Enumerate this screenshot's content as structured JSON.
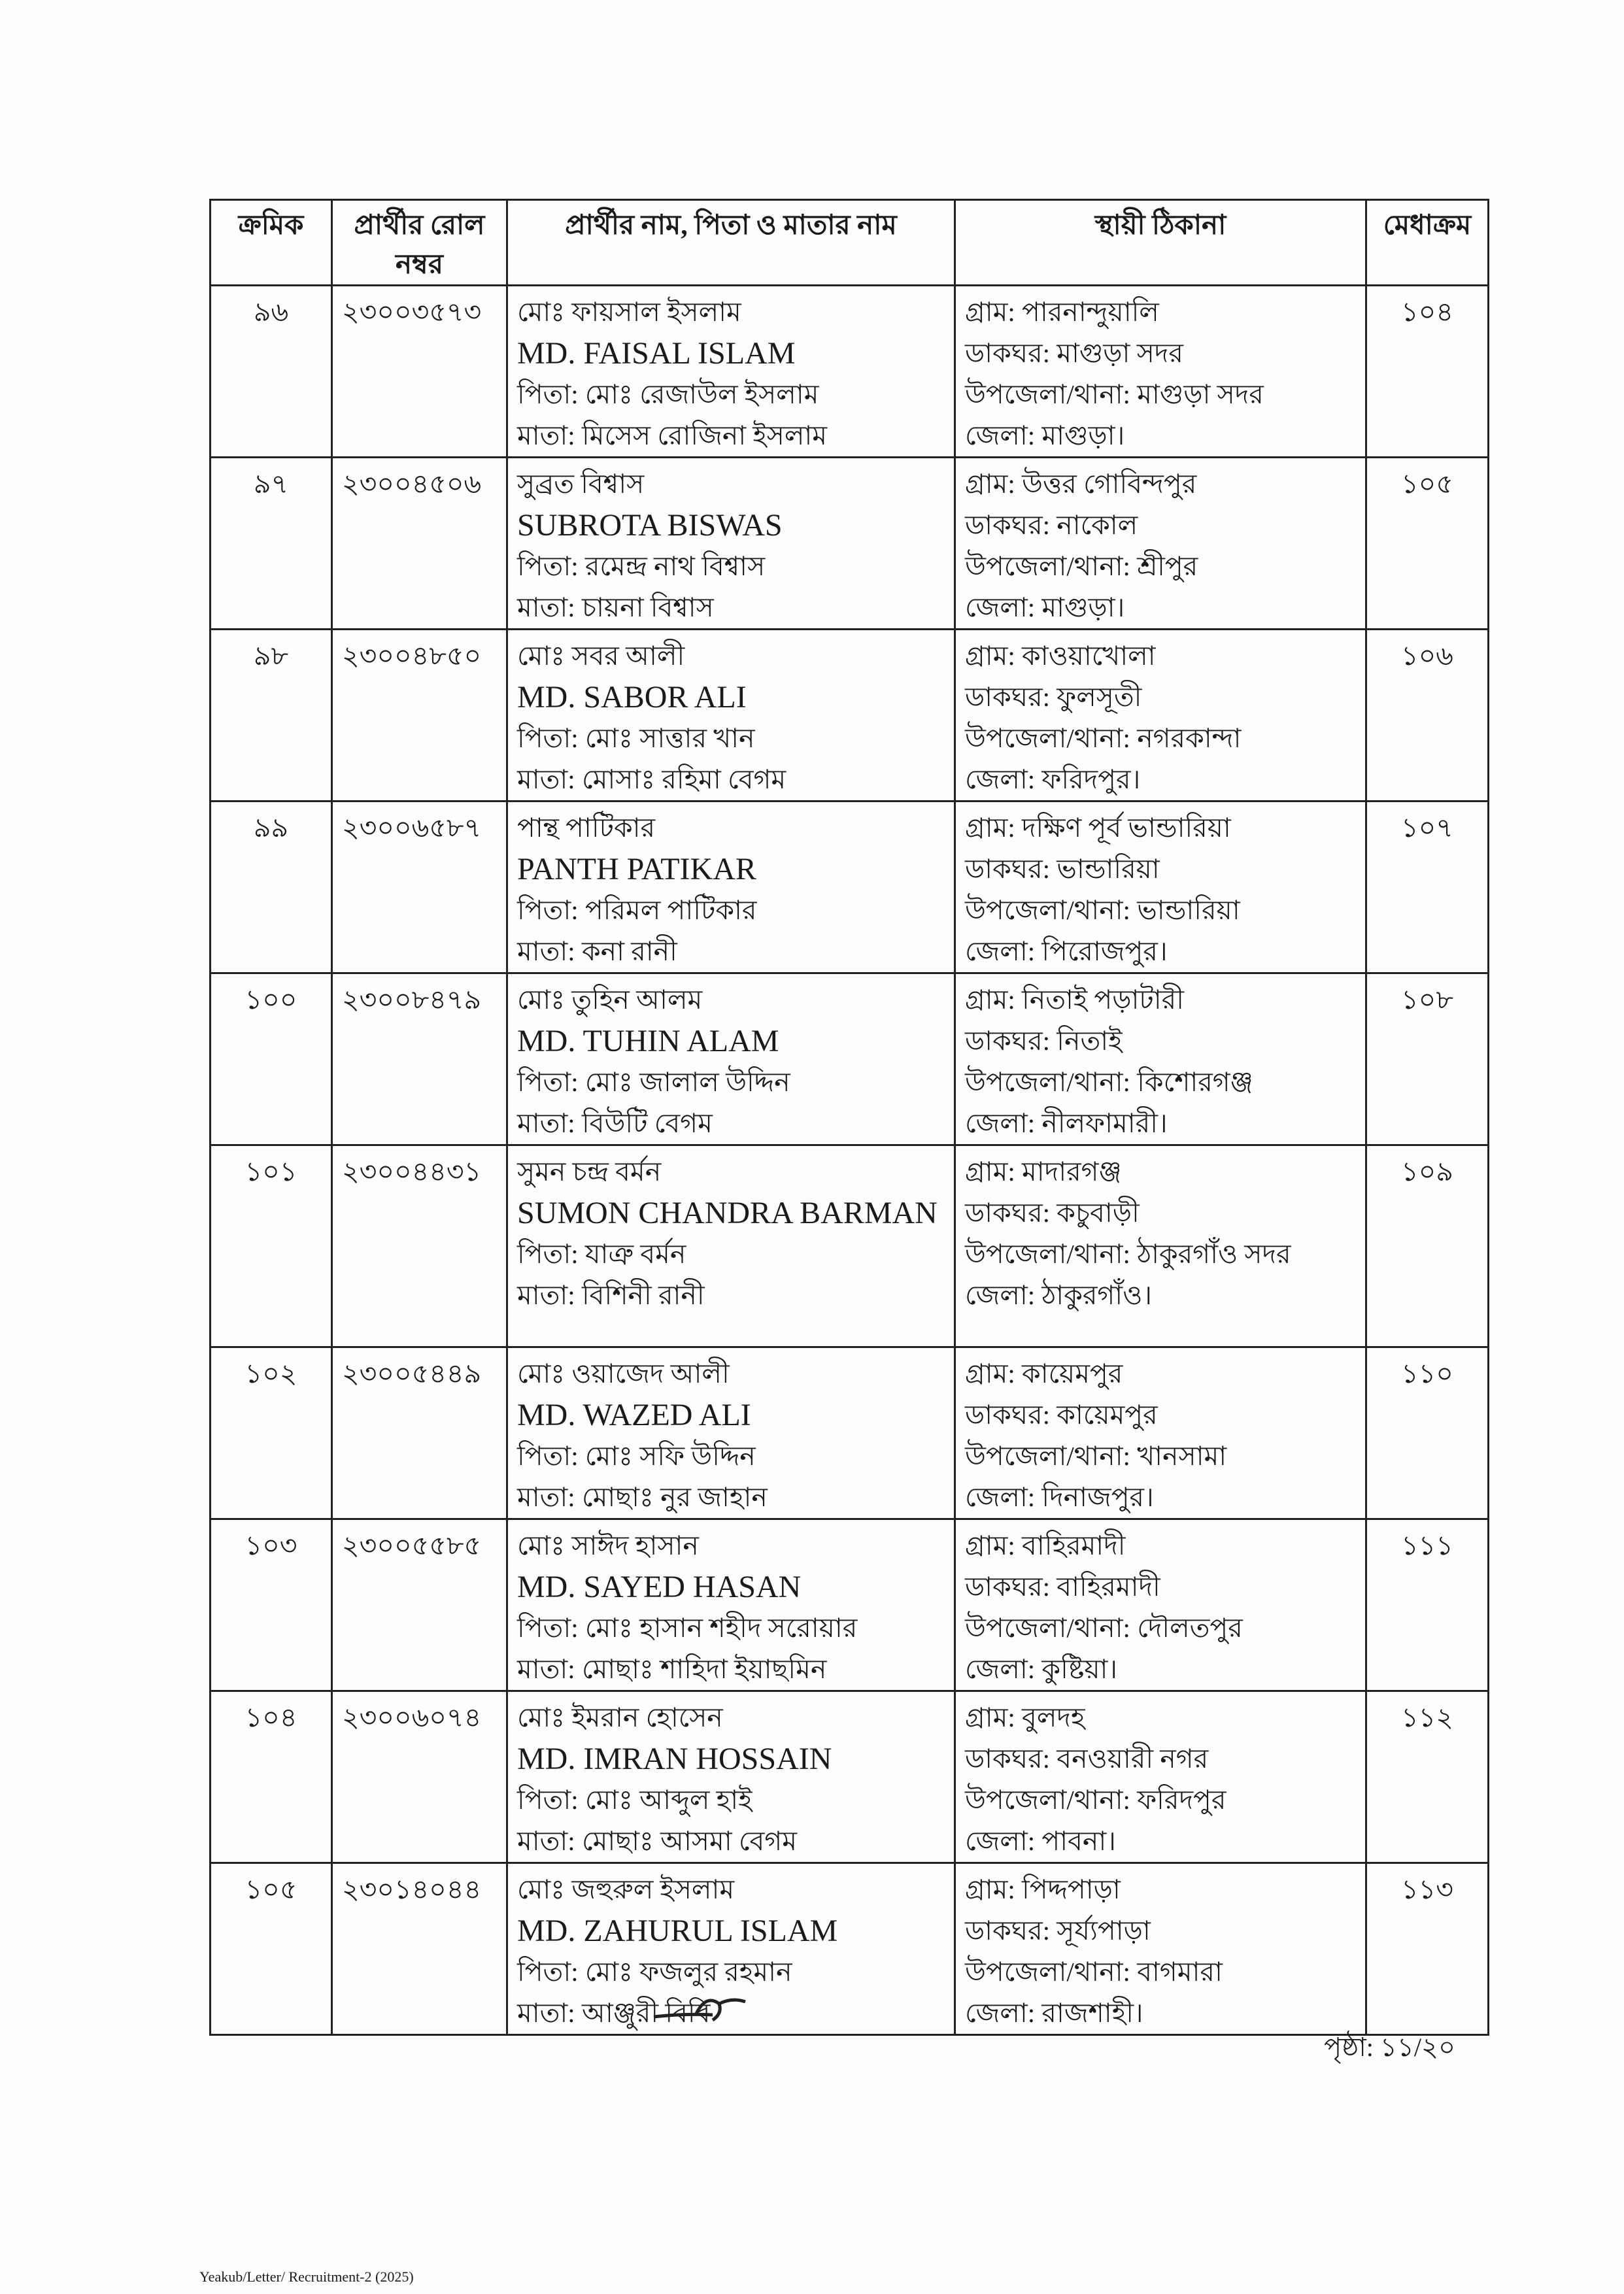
{
  "headers": {
    "serial": "ক্রমিক",
    "roll": "প্রার্থীর রোল নম্বর",
    "name": "প্রার্থীর নাম, পিতা ও মাতার নাম",
    "address": "স্থায়ী ঠিকানা",
    "merit": "মেধাক্রম"
  },
  "rows": [
    {
      "serial": "৯৬",
      "roll": "২৩০০৩৫৭৩",
      "name_bn": "মোঃ ফায়সাল ইসলাম",
      "name_en": "MD. FAISAL ISLAM",
      "father": "পিতা: মোঃ রেজাউল ইসলাম",
      "mother": "মাতা: মিসেস রোজিনা ইসলাম",
      "address": [
        "গ্রাম: পারনান্দুয়ালি",
        "ডাকঘর: মাগুড়া সদর",
        "উপজেলা/থানা: মাগুড়া সদর",
        "জেলা: মাগুড়া।"
      ],
      "merit": "১০৪"
    },
    {
      "serial": "৯৭",
      "roll": "২৩০০৪৫০৬",
      "name_bn": "সুব্রত বিশ্বাস",
      "name_en": "SUBROTA BISWAS",
      "father": "পিতা: রমেন্দ্র নাথ বিশ্বাস",
      "mother": "মাতা: চায়না বিশ্বাস",
      "address": [
        "গ্রাম: উত্তর গোবিন্দপুর",
        "ডাকঘর: নাকোল",
        "উপজেলা/থানা: শ্রীপুর",
        "জেলা: মাগুড়া।"
      ],
      "merit": "১০৫"
    },
    {
      "serial": "৯৮",
      "roll": "২৩০০৪৮৫০",
      "name_bn": "মোঃ সবর আলী",
      "name_en": "MD. SABOR ALI",
      "father": "পিতা: মোঃ সাত্তার খান",
      "mother": "মাতা: মোসাঃ রহিমা বেগম",
      "address": [
        "গ্রাম: কাওয়াখোলা",
        "ডাকঘর: ফুলসূতী",
        "উপজেলা/থানা: নগরকান্দা",
        "জেলা: ফরিদপুর।"
      ],
      "merit": "১০৬"
    },
    {
      "serial": "৯৯",
      "roll": "২৩০০৬৫৮৭",
      "name_bn": "পান্থ পাটিকার",
      "name_en": "PANTH PATIKAR",
      "father": "পিতা: পরিমল পাটিকার",
      "mother": "মাতা: কনা রানী",
      "address": [
        "গ্রাম: দক্ষিণ পূর্ব ভান্ডারিয়া",
        "ডাকঘর: ভান্ডারিয়া",
        "উপজেলা/থানা: ভান্ডারিয়া",
        "জেলা: পিরোজপুর।"
      ],
      "merit": "১০৭"
    },
    {
      "serial": "১০০",
      "roll": "২৩০০৮৪৭৯",
      "name_bn": "মোঃ তুহিন আলম",
      "name_en": "MD. TUHIN ALAM",
      "father": "পিতা: মোঃ জালাল উদ্দিন",
      "mother": "মাতা: বিউটি বেগম",
      "address": [
        "গ্রাম: নিতাই পড়াটারী",
        "ডাকঘর: নিতাই",
        "উপজেলা/থানা: কিশোরগঞ্জ",
        "জেলা: নীলফামারী।"
      ],
      "merit": "১০৮"
    },
    {
      "serial": "১০১",
      "roll": "২৩০০৪৪৩১",
      "name_bn": "সুমন চন্দ্র বর্মন",
      "name_en": "SUMON CHANDRA BARMAN",
      "father": "পিতা: যাত্রু বর্মন",
      "mother": "মাতা: বিশিনী রানী",
      "address": [
        "গ্রাম: মাদারগঞ্জ",
        "ডাকঘর: কচুবাড়ী",
        "উপজেলা/থানা: ঠাকুরগাঁও সদর",
        "জেলা: ঠাকুরগাঁও।"
      ],
      "merit": "১০৯"
    },
    {
      "serial": "১০২",
      "roll": "২৩০০৫৪৪৯",
      "name_bn": "মোঃ ওয়াজেদ আলী",
      "name_en": "MD. WAZED ALI",
      "father": "পিতা: মোঃ সফি উদ্দিন",
      "mother": "মাতা: মোছাঃ নুর জাহান",
      "address": [
        "গ্রাম: কায়েমপুর",
        "ডাকঘর: কায়েমপুর",
        "উপজেলা/থানা: খানসামা",
        "জেলা: দিনাজপুর।"
      ],
      "merit": "১১০"
    },
    {
      "serial": "১০৩",
      "roll": "২৩০০৫৫৮৫",
      "name_bn": "মোঃ সাঈদ হাসান",
      "name_en": "MD. SAYED HASAN",
      "father": "পিতা: মোঃ হাসান শহীদ সরোয়ার",
      "mother": "মাতা: মোছাঃ শাহিদা ইয়াছমিন",
      "address": [
        "গ্রাম: বাহিরমাদী",
        "ডাকঘর: বাহিরমাদী",
        "উপজেলা/থানা: দৌলতপুর",
        "জেলা: কুষ্টিয়া।"
      ],
      "merit": "১১১"
    },
    {
      "serial": "১০৪",
      "roll": "২৩০০৬০৭৪",
      "name_bn": "মোঃ ইমরান হোসেন",
      "name_en": "MD. IMRAN HOSSAIN",
      "father": "পিতা: মোঃ আব্দুল হাই",
      "mother": "মাতা: মোছাঃ আসমা বেগম",
      "address": [
        "গ্রাম: বুলদহ",
        "ডাকঘর: বনওয়ারী নগর",
        "উপজেলা/থানা: ফরিদপুর",
        "জেলা: পাবনা।"
      ],
      "merit": "১১২"
    },
    {
      "serial": "১০৫",
      "roll": "২৩০১৪০৪৪",
      "name_bn": "মোঃ জহুরুল ইসলাম",
      "name_en": "MD. ZAHURUL ISLAM",
      "father": "পিতা: মোঃ ফজলুর রহমান",
      "mother": "মাতা: আঞ্জুরী বিবি",
      "address": [
        "গ্রাম: পিদ্দপাড়া",
        "ডাকঘর: সূর্য্যপাড়া",
        "উপজেলা/থানা: বাগমারা",
        "জেলা: রাজশাহী।"
      ],
      "merit": "১১৩"
    }
  ],
  "page_number": "পৃষ্ঠা: ১১/২০",
  "footer_ref": "Yeakub/Letter/ Recruitment-2 (2025)"
}
